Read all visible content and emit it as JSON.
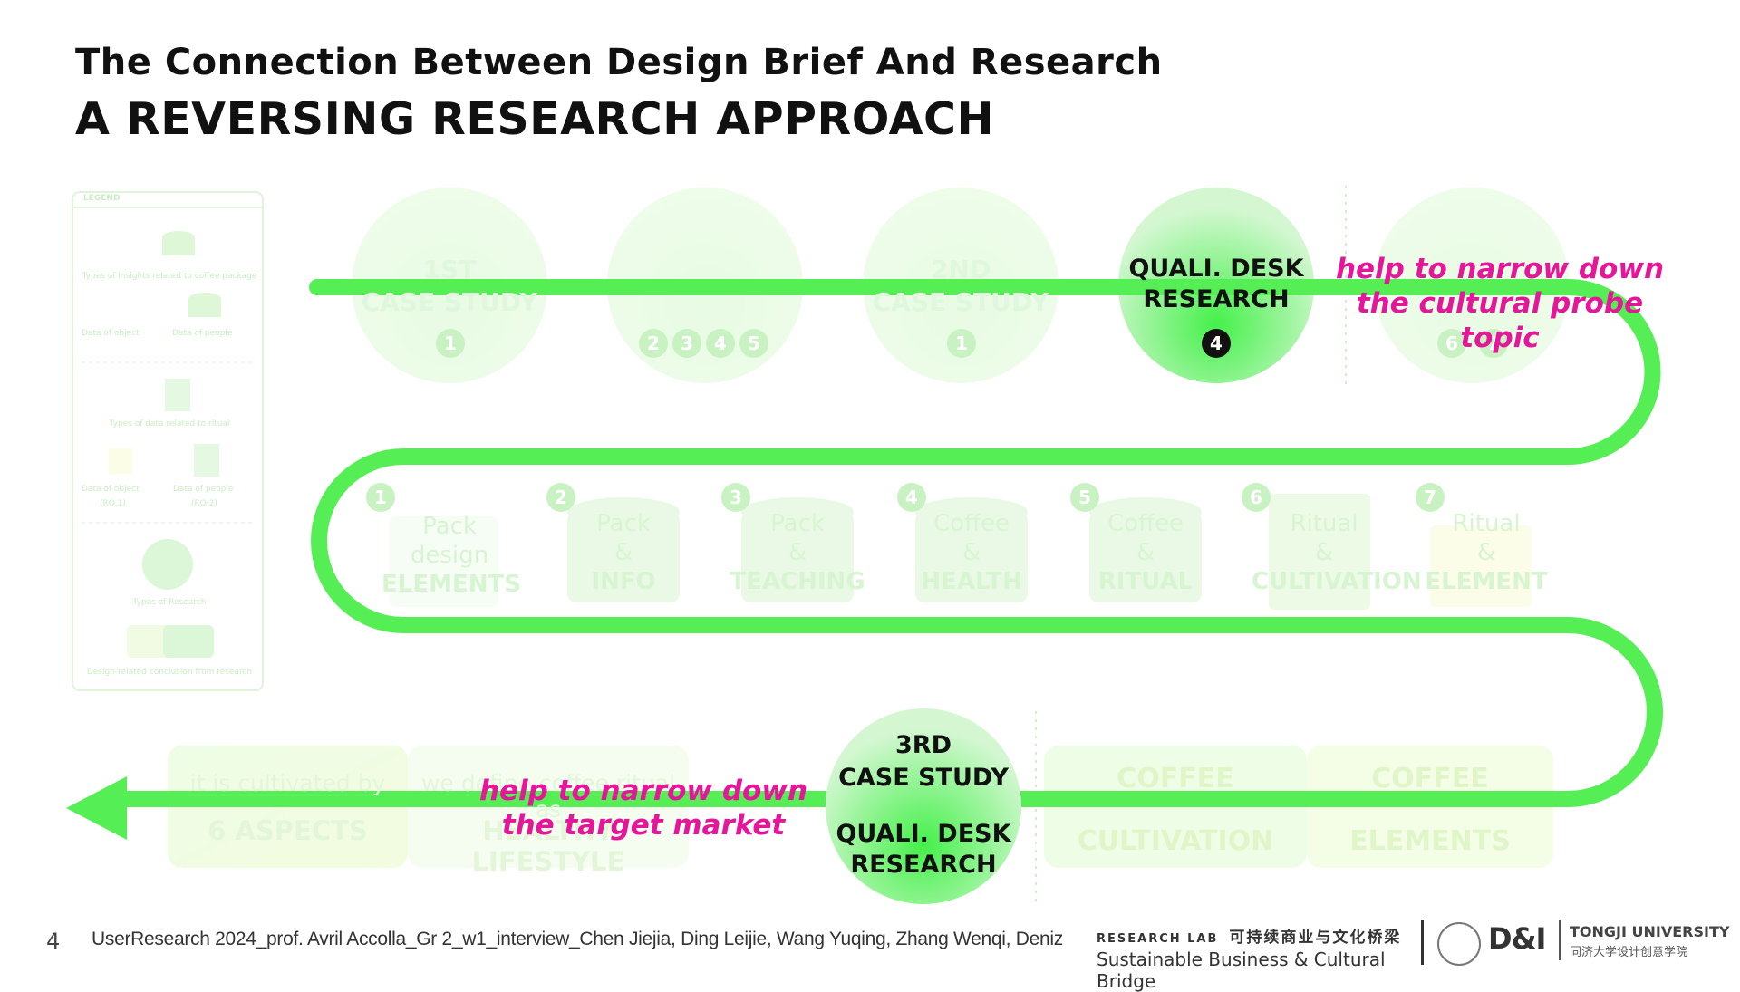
{
  "header": {
    "title": "The Connection Between Design Brief And Research",
    "subtitle": "A REVERSING RESEARCH APPROACH"
  },
  "legend": {
    "title": "LEGEND",
    "items": [
      "Types of insights related to coffee package",
      "Data of object",
      "Data of people",
      "Types of data related to ritual",
      "Data of object",
      "(RQ.1)",
      "Data of people",
      "(RQ.2)",
      "Types of Research",
      "Design-related conclusion from research"
    ]
  },
  "top_row": [
    {
      "line1": "1ST",
      "line2": "CASE STUDY",
      "badges": [
        "1"
      ]
    },
    {
      "line1": "",
      "line2": "",
      "badges": [
        "2",
        "3",
        "4",
        "5"
      ]
    },
    {
      "line1": "2ND",
      "line2": "CASE STUDY",
      "badges": [
        "1"
      ]
    },
    {
      "line1": "QUALI. DESK",
      "line2": "RESEARCH",
      "badges": [
        "4"
      ]
    },
    {
      "line1": "",
      "line2": "",
      "badges": [
        "6",
        "7"
      ]
    }
  ],
  "annotations": {
    "top": [
      "help to narrow down",
      "the cultural probe topic"
    ],
    "bottom": [
      "help to narrow down",
      "the target market"
    ]
  },
  "middle_row": [
    {
      "num": "1",
      "l1": "Pack",
      "l2": "design",
      "l3": "ELEMENTS"
    },
    {
      "num": "2",
      "l1": "Pack",
      "l2": "&",
      "l3": "INFO"
    },
    {
      "num": "3",
      "l1": "Pack",
      "l2": "&",
      "l3": "TEACHING"
    },
    {
      "num": "4",
      "l1": "Coffee",
      "l2": "&",
      "l3": "HEALTH"
    },
    {
      "num": "5",
      "l1": "Coffee",
      "l2": "&",
      "l3": "RITUAL"
    },
    {
      "num": "6",
      "l1": "Ritual",
      "l2": "&",
      "l3": "CULTIVATION"
    },
    {
      "num": "7",
      "l1": "Ritual",
      "l2": "&",
      "l3": "ELEMENT"
    }
  ],
  "bottom_row": {
    "box1_top": "it is cultivated by",
    "box1_bottom": "6 ASPECTS",
    "box2_top": "we define coffee ritual as",
    "box2_bottom": "HEALTHY LIFESTYLE",
    "circle_top1": "3RD",
    "circle_top2": "CASE STUDY",
    "circle_bot1": "QUALI. DESK",
    "circle_bot2": "RESEARCH",
    "coffee1_top": "COFFEE",
    "coffee1_bottom": "CULTIVATION",
    "coffee2_top": "COFFEE",
    "coffee2_bottom": "ELEMENTS"
  },
  "footer": {
    "page": "4",
    "credits": "UserResearch 2024_prof. Avril Accolla_Gr 2_w1_interview_Chen Jiejia, Ding Leijie, Wang Yuqing, Zhang Wenqi, Deniz",
    "lab_label": "RESEARCH LAB",
    "lab_cn": "可持续商业与文化桥梁",
    "lab_en": "Sustainable Business & Cultural Bridge",
    "logo_text": "D&I",
    "uni_en": "TONGJI UNIVERSITY",
    "uni_cn": "同济大学设计创意学院"
  },
  "colors": {
    "path": "#55ef55",
    "magenta": "#e6169a",
    "faded_green": "#dff8da"
  }
}
